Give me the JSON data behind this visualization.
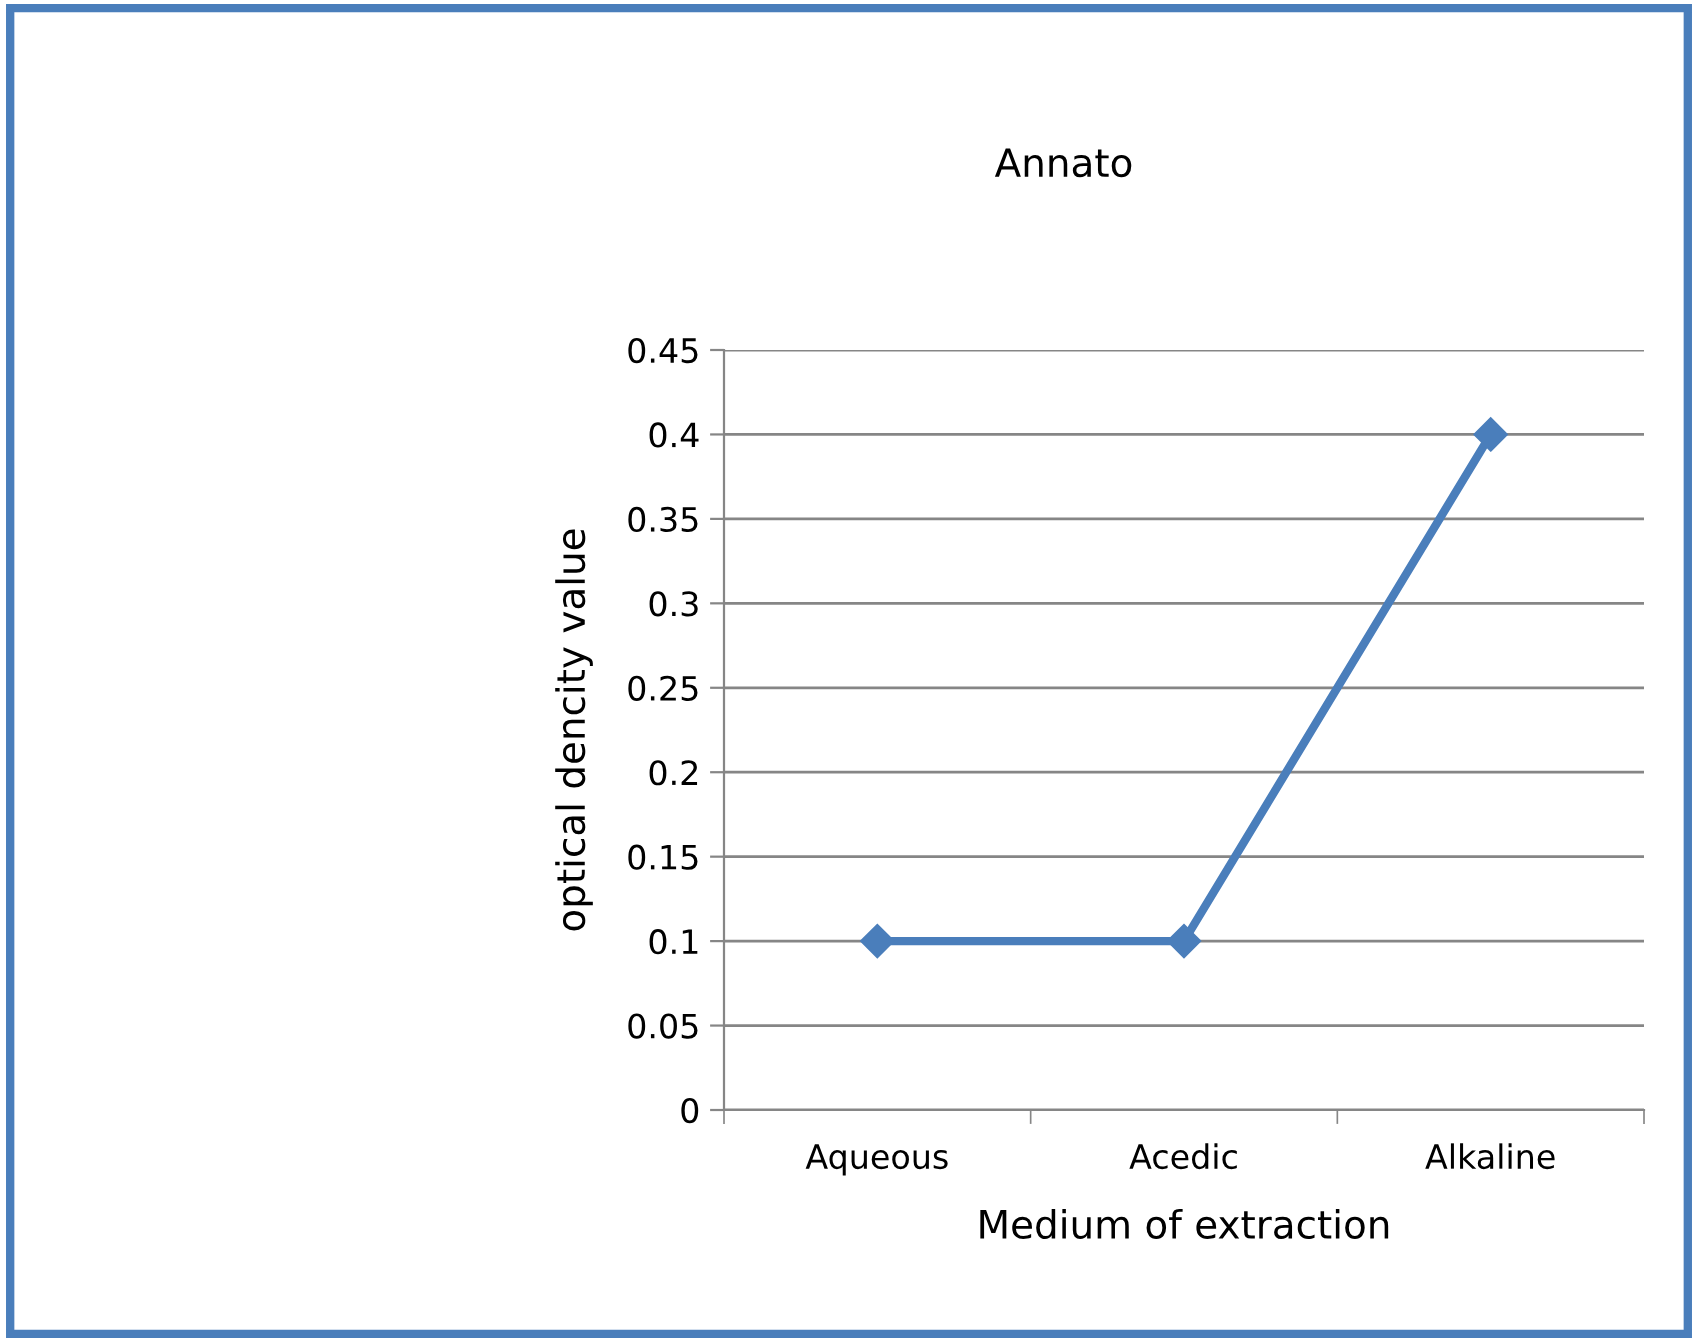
{
  "chart_data": {
    "type": "line",
    "title": "Annato",
    "xlabel": "Medium of extraction",
    "ylabel": "optical dencity value",
    "categories": [
      "Aqueous",
      "Acedic",
      "Alkaline"
    ],
    "series": [
      {
        "color": "#4a7ebb",
        "values": [
          0.1,
          0.1,
          0.4
        ]
      }
    ],
    "ylim": [
      0,
      0.45
    ],
    "yticks": [
      0,
      0.05,
      0.1,
      0.15,
      0.2,
      0.25,
      0.3,
      0.35,
      0.4,
      0.45
    ],
    "grid": "y",
    "marker": "diamond",
    "line_style": "solid",
    "legend": false
  }
}
